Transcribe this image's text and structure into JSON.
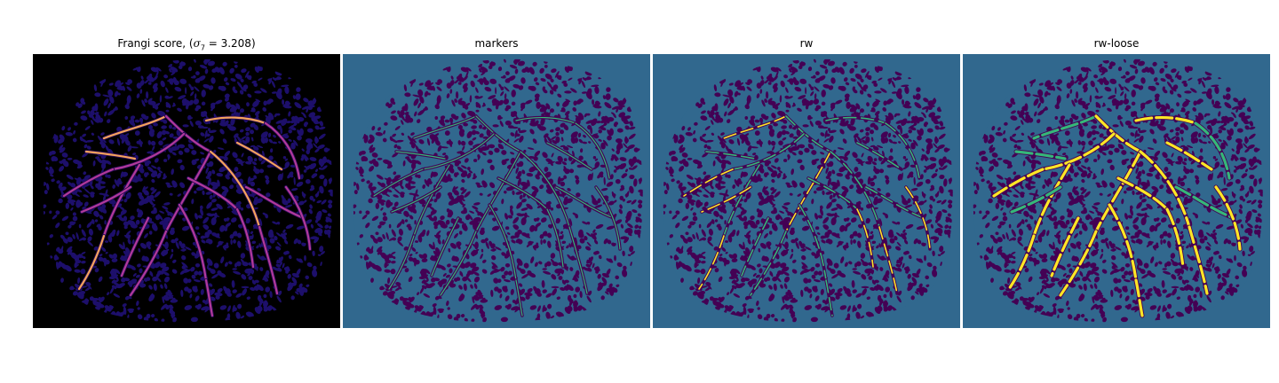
{
  "panels": [
    {
      "id": "frangi",
      "title_prefix": "Frangi score, (",
      "title_sigma": "σ",
      "title_sub": "7",
      "title_suffix": " = 3.208)",
      "background": "#000000"
    },
    {
      "id": "markers",
      "title": "markers",
      "background": "#31688e"
    },
    {
      "id": "rw",
      "title": "rw",
      "background": "#31688e"
    },
    {
      "id": "rw-loose",
      "title": "rw-loose",
      "background": "#31688e"
    }
  ],
  "colors": {
    "frangi_blob": "#1d0f6b",
    "frangi_vessel": "#b23a9b",
    "frangi_hot": "#f4a35c",
    "viridis_dark": "#440154",
    "viridis_mid": "#31688e",
    "viridis_green": "#35b779",
    "viridis_yellow": "#fde725"
  }
}
